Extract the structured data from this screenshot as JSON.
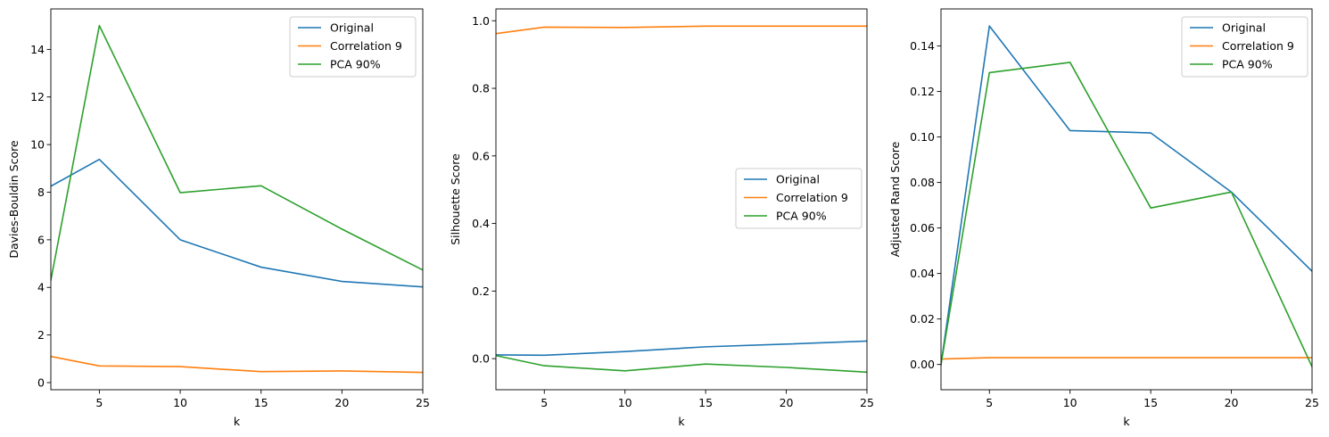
{
  "colors": {
    "Original": "#1f77b4",
    "Correlation 9": "#ff7f0e",
    "PCA 90%": "#2ca02c"
  },
  "chart_data": [
    {
      "type": "line",
      "xlabel": "k",
      "ylabel": "Davies-Bouldin Score",
      "x": [
        2,
        5,
        10,
        15,
        20,
        25
      ],
      "xlim": [
        2,
        25
      ],
      "xticks": [
        5,
        10,
        15,
        20,
        25
      ],
      "ylim": [
        -0.3,
        15.7
      ],
      "yticks": [
        0,
        2,
        4,
        6,
        8,
        10,
        12,
        14
      ],
      "legend": "top-right",
      "series": [
        {
          "name": "Original",
          "values": [
            8.25,
            9.38,
            6.0,
            4.85,
            4.25,
            4.02
          ]
        },
        {
          "name": "Correlation 9",
          "values": [
            1.1,
            0.7,
            0.67,
            0.46,
            0.49,
            0.43
          ]
        },
        {
          "name": "PCA 90%",
          "values": [
            4.3,
            15.0,
            7.98,
            8.27,
            6.45,
            4.73
          ]
        }
      ]
    },
    {
      "type": "line",
      "xlabel": "k",
      "ylabel": "Silhouette Score",
      "x": [
        2,
        5,
        10,
        15,
        20,
        25
      ],
      "xlim": [
        2,
        25
      ],
      "xticks": [
        5,
        10,
        15,
        20,
        25
      ],
      "ylim": [
        -0.092,
        1.035
      ],
      "yticks": [
        0.0,
        0.2,
        0.4,
        0.6,
        0.8,
        1.0
      ],
      "legend": "center-right",
      "series": [
        {
          "name": "Original",
          "values": [
            0.011,
            0.01,
            0.021,
            0.035,
            0.043,
            0.052
          ]
        },
        {
          "name": "Correlation 9",
          "values": [
            0.962,
            0.981,
            0.98,
            0.984,
            0.984,
            0.984
          ]
        },
        {
          "name": "PCA 90%",
          "values": [
            0.009,
            -0.021,
            -0.036,
            -0.016,
            -0.026,
            -0.04
          ]
        }
      ]
    },
    {
      "type": "line",
      "xlabel": "k",
      "ylabel": "Adjusted Rand Score",
      "x": [
        2,
        5,
        10,
        15,
        20,
        25
      ],
      "xlim": [
        2,
        25
      ],
      "xticks": [
        5,
        10,
        15,
        20,
        25
      ],
      "ylim": [
        -0.0111,
        0.1563
      ],
      "yticks": [
        0.0,
        0.02,
        0.04,
        0.06,
        0.08,
        0.1,
        0.12,
        0.14
      ],
      "legend": "top-right",
      "series": [
        {
          "name": "Original",
          "values": [
            0.0,
            0.1488,
            0.1028,
            0.1018,
            0.0758,
            0.041
          ]
        },
        {
          "name": "Correlation 9",
          "values": [
            0.0024,
            0.003,
            0.003,
            0.003,
            0.003,
            0.003
          ]
        },
        {
          "name": "PCA 90%",
          "values": [
            0.0,
            0.1283,
            0.1328,
            0.0688,
            0.0758,
            -0.001
          ]
        }
      ]
    }
  ]
}
